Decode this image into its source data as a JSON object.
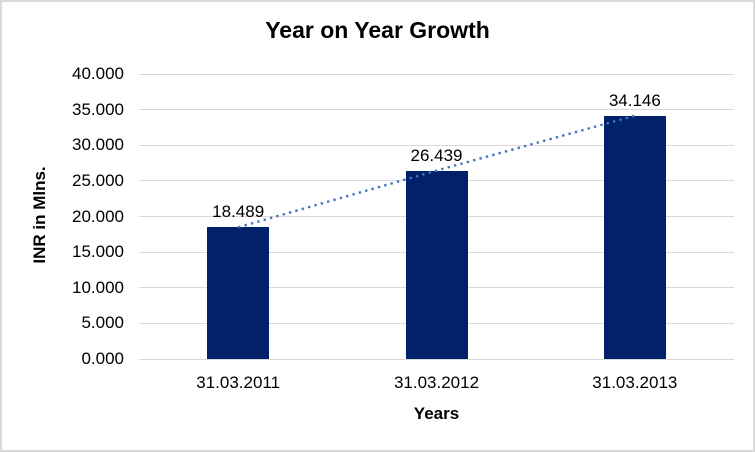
{
  "chart_data": {
    "type": "bar",
    "title": "Year on Year Growth",
    "xlabel": "Years",
    "ylabel": "INR in Mlns.",
    "categories": [
      "31.03.2011",
      "31.03.2012",
      "31.03.2013"
    ],
    "values": [
      18.489,
      26.439,
      34.146
    ],
    "data_labels": [
      "18.489",
      "26.439",
      "34.146"
    ],
    "ylim": [
      0,
      40
    ],
    "ytick_step": 5,
    "yticks": [
      "40.000",
      "35.000",
      "30.000",
      "25.000",
      "20.000",
      "15.000",
      "10.000",
      "5.000",
      "0.000"
    ],
    "grid": true,
    "legend_position": "none",
    "trendline": {
      "type": "linear",
      "style": "dotted"
    },
    "colors": {
      "bar": "#012169",
      "trendline": "#4472C4",
      "gridline": "#d9d9d9",
      "text": "#000000",
      "border": "#d9d9d9",
      "background": "#ffffff"
    }
  }
}
